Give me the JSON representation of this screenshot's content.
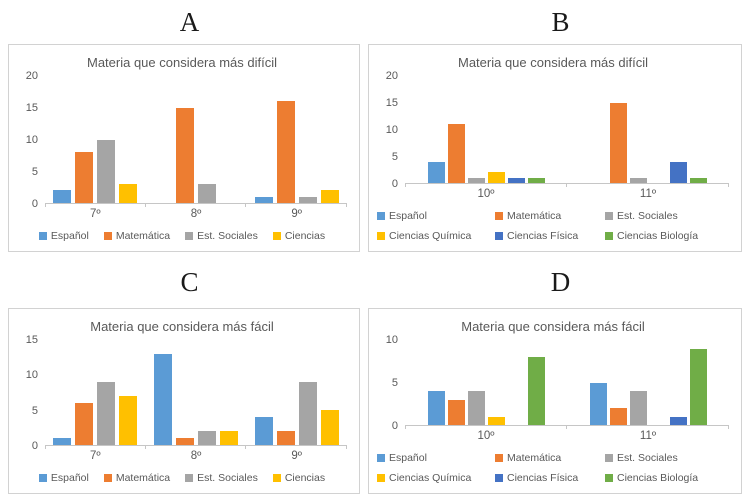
{
  "styles": {
    "title_color": "#595959",
    "axis_color": "#595959",
    "axis_line": "#c6c6c6",
    "panel_border": "#d2d2d2"
  },
  "chart_data": [
    {
      "letter": "A",
      "type": "bar",
      "title": "Materia que considera más difícil",
      "categories": [
        "7º",
        "8º",
        "9º"
      ],
      "series": [
        {
          "name": "Español",
          "color": "#5B9BD5",
          "values": [
            2,
            0,
            1
          ]
        },
        {
          "name": "Matemática",
          "color": "#ED7D31",
          "values": [
            8,
            15,
            16
          ]
        },
        {
          "name": "Est. Sociales",
          "color": "#A5A5A5",
          "values": [
            10,
            3,
            1
          ]
        },
        {
          "name": "Ciencias",
          "color": "#FFC000",
          "values": [
            3,
            0,
            2
          ]
        }
      ],
      "ylim": [
        0,
        20
      ],
      "yticks": [
        0,
        5,
        10,
        15,
        20
      ],
      "grid": false,
      "legend_position": "bottom",
      "legend_rows": 1
    },
    {
      "letter": "B",
      "type": "bar",
      "title": "Materia que considera más difícil",
      "categories": [
        "10º",
        "11º"
      ],
      "series": [
        {
          "name": "Español",
          "color": "#5B9BD5",
          "values": [
            4,
            0
          ]
        },
        {
          "name": "Matemática",
          "color": "#ED7D31",
          "values": [
            11,
            15
          ]
        },
        {
          "name": "Est. Sociales",
          "color": "#A5A5A5",
          "values": [
            1,
            1
          ]
        },
        {
          "name": "Ciencias Química",
          "color": "#FFC000",
          "values": [
            2,
            0
          ]
        },
        {
          "name": "Ciencias Física",
          "color": "#4472C4",
          "values": [
            1,
            4
          ]
        },
        {
          "name": "Ciencias Biología",
          "color": "#70AD47",
          "values": [
            1,
            1
          ]
        }
      ],
      "ylim": [
        0,
        20
      ],
      "yticks": [
        0,
        5,
        10,
        15,
        20
      ],
      "grid": false,
      "legend_position": "bottom",
      "legend_rows": 2
    },
    {
      "letter": "C",
      "type": "bar",
      "title": "Materia que considera más fácil",
      "categories": [
        "7º",
        "8º",
        "9º"
      ],
      "series": [
        {
          "name": "Español",
          "color": "#5B9BD5",
          "values": [
            1,
            13,
            4
          ]
        },
        {
          "name": "Matemática",
          "color": "#ED7D31",
          "values": [
            6,
            1,
            2
          ]
        },
        {
          "name": "Est. Sociales",
          "color": "#A5A5A5",
          "values": [
            9,
            2,
            9
          ]
        },
        {
          "name": "Ciencias",
          "color": "#FFC000",
          "values": [
            7,
            2,
            5
          ]
        }
      ],
      "ylim": [
        0,
        15
      ],
      "yticks": [
        0,
        5,
        10,
        15
      ],
      "grid": false,
      "legend_position": "bottom",
      "legend_rows": 1
    },
    {
      "letter": "D",
      "type": "bar",
      "title": "Materia que considera más fácil",
      "categories": [
        "10º",
        "11º"
      ],
      "series": [
        {
          "name": "Español",
          "color": "#5B9BD5",
          "values": [
            4,
            5
          ]
        },
        {
          "name": "Matemática",
          "color": "#ED7D31",
          "values": [
            3,
            2
          ]
        },
        {
          "name": "Est. Sociales",
          "color": "#A5A5A5",
          "values": [
            4,
            4
          ]
        },
        {
          "name": "Ciencias Química",
          "color": "#FFC000",
          "values": [
            1,
            0
          ]
        },
        {
          "name": "Ciencias Física",
          "color": "#4472C4",
          "values": [
            0,
            1
          ]
        },
        {
          "name": "Ciencias Biología",
          "color": "#70AD47",
          "values": [
            8,
            9
          ]
        }
      ],
      "ylim": [
        0,
        10
      ],
      "yticks": [
        0,
        5,
        10
      ],
      "grid": false,
      "legend_position": "bottom",
      "legend_rows": 2
    }
  ]
}
